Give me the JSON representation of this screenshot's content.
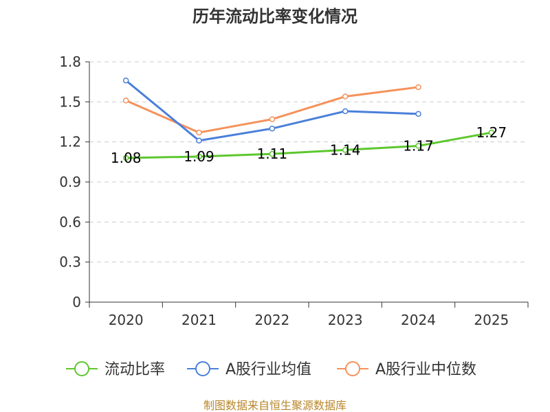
{
  "chart_data": {
    "type": "line",
    "title": "历年流动比率变化情况",
    "categories": [
      "2020",
      "2021",
      "2022",
      "2023",
      "2024",
      "2025"
    ],
    "ylim": [
      0,
      1.8
    ],
    "yticks": [
      "0",
      "0.3",
      "0.6",
      "0.9",
      "1.2",
      "1.5",
      "1.8"
    ],
    "ytick_values": [
      0,
      0.3,
      0.6,
      0.9,
      1.2,
      1.5,
      1.8
    ],
    "grid": true,
    "legend_position": "bottom",
    "series": [
      {
        "key": "current",
        "name": "流动比率",
        "color": "#5cc72e",
        "values": [
          1.08,
          1.09,
          1.11,
          1.14,
          1.17,
          1.27
        ],
        "labels": [
          "1.08",
          "1.09",
          "1.11",
          "1.14",
          "1.17",
          "1.27"
        ]
      },
      {
        "key": "industry_avg",
        "name": "A股行业均值",
        "color": "#4a7fd9",
        "values": [
          1.66,
          1.21,
          1.3,
          1.43,
          1.41,
          null
        ]
      },
      {
        "key": "industry_median",
        "name": "A股行业中位数",
        "color": "#f5915a",
        "values": [
          1.51,
          1.27,
          1.37,
          1.54,
          1.61,
          null
        ]
      }
    ]
  },
  "source": "制图数据来自恒生聚源数据库"
}
